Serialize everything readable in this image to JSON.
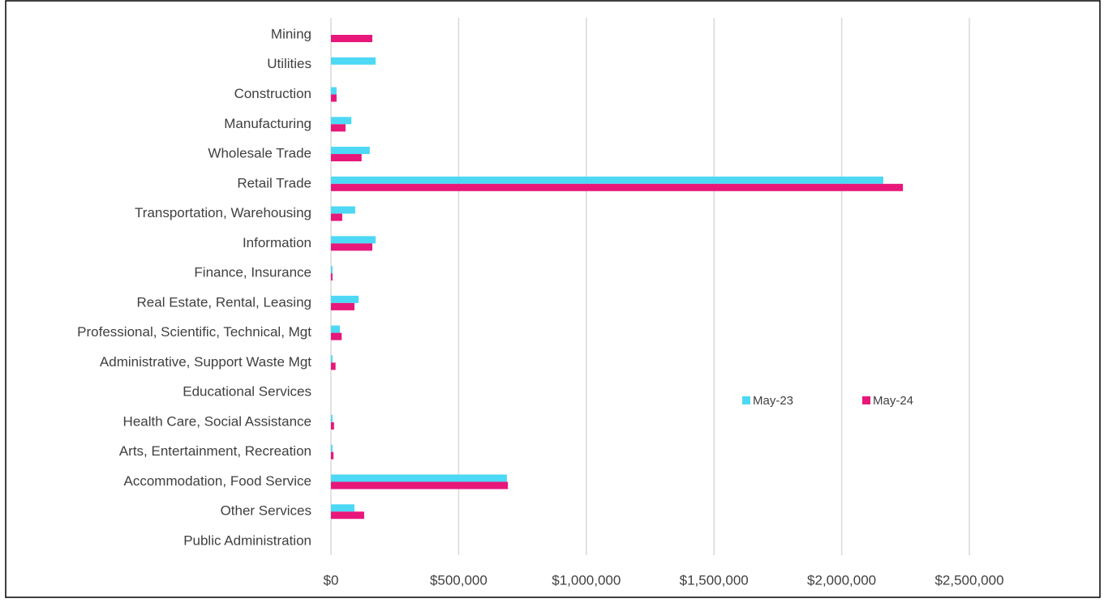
{
  "chart_data": {
    "type": "hbar",
    "categories": [
      "Mining",
      "Utilities",
      "Construction",
      "Manufacturing",
      "Wholesale Trade",
      "Retail Trade",
      "Transportation, Warehousing",
      "Information",
      "Finance, Insurance",
      "Real Estate, Rental, Leasing",
      "Professional, Scientific, Technical, Mgt",
      "Administrative, Support Waste Mgt",
      "Educational Services",
      "Health Care, Social Assistance",
      "Arts, Entertainment, Recreation",
      "Accommodation, Food Service",
      "Other Services",
      "Public Administration"
    ],
    "series": [
      {
        "name": "May-23",
        "color": "#4dd8f5",
        "values": [
          0,
          175000,
          22000,
          80000,
          152000,
          2163000,
          95000,
          175000,
          6000,
          108000,
          35000,
          6000,
          0,
          6000,
          6000,
          689000,
          92000,
          0
        ]
      },
      {
        "name": "May-24",
        "color": "#e8177a",
        "values": [
          162000,
          0,
          22000,
          57000,
          120000,
          2240000,
          44000,
          162000,
          6000,
          92000,
          42000,
          18000,
          0,
          12000,
          10000,
          693000,
          130000,
          0
        ]
      }
    ],
    "xlim": [
      0,
      2800000
    ],
    "xticks": [
      {
        "value": 0,
        "label": "$0"
      },
      {
        "value": 500000,
        "label": "$500,000"
      },
      {
        "value": 1000000,
        "label": "$1,000,000"
      },
      {
        "value": 1500000,
        "label": "$1,500,000"
      },
      {
        "value": 2000000,
        "label": "$2,000,000"
      },
      {
        "value": 2500000,
        "label": "$2,500,000"
      }
    ],
    "grid": true,
    "legend": "right"
  }
}
